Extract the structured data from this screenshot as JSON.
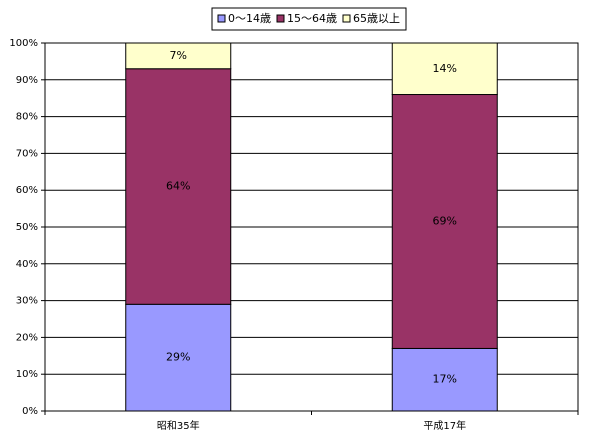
{
  "chart_data": {
    "type": "stacked_bar",
    "categories": [
      "昭和35年",
      "平成17年"
    ],
    "series": [
      {
        "name": "0～14歳",
        "color": "#9999ff",
        "values": [
          29,
          17
        ],
        "value_labels": [
          "29%",
          "17%"
        ]
      },
      {
        "name": "15～64歳",
        "color": "#993366",
        "values": [
          64,
          69
        ],
        "value_labels": [
          "64%",
          "69%"
        ]
      },
      {
        "name": "65歳以上",
        "color": "#ffffcc",
        "values": [
          7,
          14
        ],
        "value_labels": [
          "7%",
          "14%"
        ]
      }
    ],
    "ylim": [
      0,
      100
    ],
    "yticks": [
      {
        "value": 0,
        "label": "0%"
      },
      {
        "value": 10,
        "label": "10%"
      },
      {
        "value": 20,
        "label": "20%"
      },
      {
        "value": 30,
        "label": "30%"
      },
      {
        "value": 40,
        "label": "40%"
      },
      {
        "value": 50,
        "label": "50%"
      },
      {
        "value": 60,
        "label": "60%"
      },
      {
        "value": 70,
        "label": "70%"
      },
      {
        "value": 80,
        "label": "80%"
      },
      {
        "value": 90,
        "label": "90%"
      },
      {
        "value": 100,
        "label": "100%"
      }
    ],
    "grid": true,
    "legend": "top"
  }
}
